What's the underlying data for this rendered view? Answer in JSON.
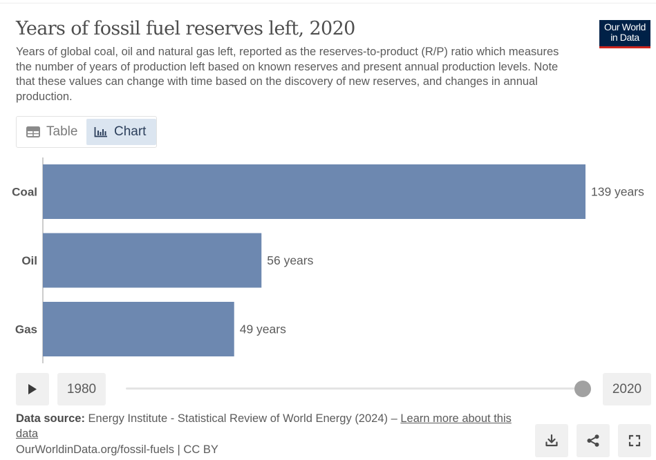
{
  "header": {
    "title": "Years of fossil fuel reserves left, 2020",
    "subtitle": "Years of global coal, oil and natural gas left, reported as the reserves-to-product (R/P) ratio which measures the number of years of production left based on known reserves and present annual production levels. Note that these values can change with time based on the discovery of new reserves, and changes in annual production."
  },
  "logo": {
    "line1": "Our World",
    "line2": "in Data",
    "bg_color": "#002147",
    "accent_color": "#ce261e"
  },
  "tabs": {
    "table_label": "Table",
    "chart_label": "Chart",
    "active": "Chart"
  },
  "chart_data": {
    "type": "bar",
    "orientation": "horizontal",
    "title": "Years of fossil fuel reserves left, 2020",
    "categories": [
      "Coal",
      "Oil",
      "Gas"
    ],
    "values": [
      139,
      56,
      49
    ],
    "value_labels": [
      "139 years",
      "56 years",
      "49 years"
    ],
    "unit": "years",
    "xlim": [
      0,
      139
    ],
    "bar_color": "#6d88b0",
    "grid": false,
    "legend": "none"
  },
  "timeline": {
    "start_year": "1980",
    "end_year": "2020",
    "selected_year": 2020
  },
  "footer": {
    "source_label": "Data source:",
    "source_text": "Energy Institute - Statistical Review of World Energy (2024) – ",
    "learn_more": "Learn more about this data",
    "credit": "OurWorldinData.org/fossil-fuels | CC BY"
  },
  "actions": [
    "download-icon",
    "share-icon",
    "fullscreen-icon"
  ]
}
